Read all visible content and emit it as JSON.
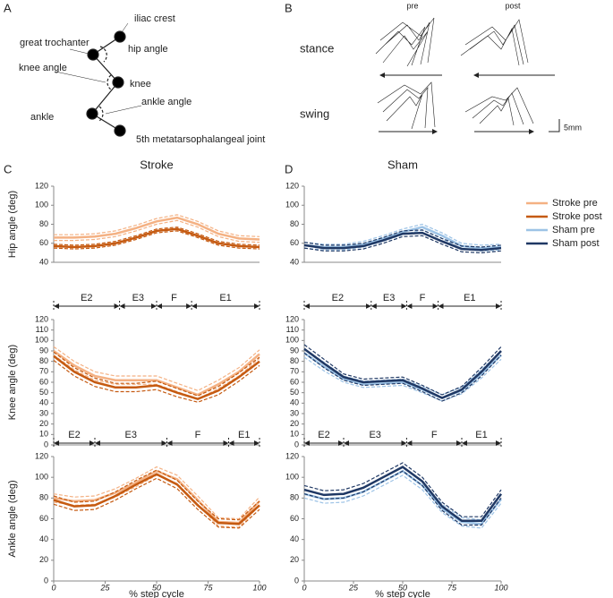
{
  "figure": {
    "panel_a": {
      "letter": "A",
      "labels": [
        "iliac crest",
        "hip angle",
        "great trochanter",
        "knee angle",
        "knee",
        "ankle angle",
        "ankle",
        "5th metatarsophalangeal joint"
      ]
    },
    "panel_b": {
      "letter": "B",
      "columns": [
        "pre",
        "post"
      ],
      "rows": [
        "stance",
        "swing"
      ],
      "scale": "5mm"
    },
    "panel_c": "C",
    "panel_d": "D"
  },
  "chart_data": [
    {
      "type": "line",
      "title": "Stroke",
      "ylabel": "Hip angle (deg)",
      "ylim": [
        40,
        120
      ],
      "yticks": [
        40,
        60,
        80,
        100,
        120
      ],
      "xlim": [
        0,
        100
      ],
      "x": [
        0,
        10,
        20,
        30,
        40,
        50,
        60,
        70,
        80,
        90,
        100
      ],
      "series": [
        {
          "name": "Stroke pre",
          "color": "#f4b183",
          "values": [
            66,
            66,
            67,
            70,
            76,
            83,
            87,
            80,
            70,
            65,
            64
          ],
          "lower": [
            63,
            63,
            64,
            67,
            73,
            80,
            84,
            77,
            67,
            62,
            61
          ],
          "upper": [
            69,
            69,
            70,
            73,
            79,
            86,
            90,
            83,
            73,
            68,
            67
          ]
        },
        {
          "name": "Stroke post",
          "color": "#c55a11",
          "values": [
            57,
            56,
            57,
            60,
            66,
            73,
            75,
            68,
            60,
            57,
            56
          ],
          "lower": [
            55,
            54,
            55,
            58,
            64,
            71,
            73,
            66,
            58,
            55,
            54
          ],
          "upper": [
            59,
            58,
            59,
            62,
            68,
            75,
            77,
            70,
            62,
            59,
            58
          ]
        }
      ]
    },
    {
      "type": "line",
      "title": "Sham",
      "ylim": [
        40,
        120
      ],
      "yticks": [
        40,
        60,
        80,
        100,
        120
      ],
      "xlim": [
        0,
        100
      ],
      "x": [
        0,
        10,
        20,
        30,
        40,
        50,
        60,
        70,
        80,
        90,
        100
      ],
      "series": [
        {
          "name": "Sham pre",
          "color": "#9dc3e6",
          "values": [
            58,
            56,
            56,
            59,
            65,
            72,
            77,
            68,
            57,
            55,
            56
          ],
          "lower": [
            55,
            53,
            53,
            56,
            62,
            69,
            74,
            65,
            54,
            52,
            53
          ],
          "upper": [
            61,
            59,
            59,
            62,
            68,
            75,
            80,
            71,
            60,
            58,
            59
          ]
        },
        {
          "name": "Sham post",
          "color": "#1f3864",
          "values": [
            58,
            55,
            55,
            57,
            63,
            70,
            71,
            62,
            54,
            53,
            55
          ],
          "lower": [
            55,
            52,
            52,
            54,
            60,
            67,
            68,
            59,
            51,
            50,
            52
          ],
          "upper": [
            61,
            58,
            58,
            60,
            66,
            73,
            74,
            65,
            57,
            56,
            58
          ]
        }
      ]
    },
    {
      "type": "line",
      "ylabel": "Knee angle (deg)",
      "ylim": [
        0,
        120
      ],
      "yticks": [
        0,
        10,
        20,
        30,
        40,
        50,
        60,
        70,
        80,
        90,
        100,
        110,
        120
      ],
      "xlim": [
        0,
        100
      ],
      "x": [
        0,
        10,
        20,
        30,
        40,
        50,
        60,
        70,
        80,
        90,
        100
      ],
      "phases": {
        "labels": [
          "E2",
          "E3",
          "F",
          "E1"
        ],
        "bounds": [
          0,
          32,
          50,
          67,
          100
        ]
      },
      "series": [
        {
          "name": "Stroke pre",
          "color": "#f4b183",
          "values": [
            90,
            76,
            66,
            62,
            62,
            62,
            55,
            48,
            58,
            70,
            87
          ],
          "lower": [
            86,
            72,
            62,
            58,
            58,
            58,
            51,
            44,
            54,
            66,
            83
          ],
          "upper": [
            94,
            80,
            70,
            66,
            66,
            66,
            59,
            52,
            62,
            74,
            91
          ]
        },
        {
          "name": "Stroke post",
          "color": "#c55a11",
          "values": [
            85,
            70,
            60,
            55,
            55,
            57,
            50,
            44,
            52,
            65,
            80
          ],
          "lower": [
            81,
            66,
            56,
            51,
            51,
            53,
            46,
            41,
            48,
            61,
            76
          ],
          "upper": [
            89,
            74,
            64,
            59,
            59,
            61,
            54,
            47,
            56,
            69,
            84
          ]
        }
      ]
    },
    {
      "type": "line",
      "ylim": [
        0,
        120
      ],
      "yticks": [
        0,
        10,
        20,
        30,
        40,
        50,
        60,
        70,
        80,
        90,
        100,
        110,
        120
      ],
      "xlim": [
        0,
        100
      ],
      "x": [
        0,
        10,
        20,
        30,
        40,
        50,
        60,
        70,
        80,
        90,
        100
      ],
      "phases": {
        "labels": [
          "E2",
          "E3",
          "F",
          "E1"
        ],
        "bounds": [
          0,
          34,
          52,
          68,
          100
        ]
      },
      "series": [
        {
          "name": "Sham pre",
          "color": "#9dc3e6",
          "values": [
            88,
            75,
            63,
            58,
            59,
            60,
            53,
            45,
            52,
            68,
            86
          ],
          "lower": [
            84,
            71,
            60,
            55,
            56,
            57,
            50,
            42,
            49,
            64,
            82
          ],
          "upper": [
            92,
            79,
            66,
            61,
            62,
            63,
            56,
            48,
            55,
            72,
            90
          ]
        },
        {
          "name": "Sham post",
          "color": "#1f3864",
          "values": [
            92,
            78,
            65,
            60,
            61,
            62,
            54,
            45,
            53,
            70,
            90
          ],
          "lower": [
            88,
            74,
            62,
            57,
            58,
            59,
            51,
            42,
            50,
            66,
            86
          ],
          "upper": [
            96,
            82,
            68,
            63,
            64,
            65,
            57,
            48,
            56,
            74,
            94
          ]
        }
      ]
    },
    {
      "type": "line",
      "ylabel": "Ankle angle (deg)",
      "xlabel": "% step cycle",
      "ylim": [
        0,
        120
      ],
      "yticks": [
        0,
        20,
        40,
        60,
        80,
        100,
        120
      ],
      "xlim": [
        0,
        100
      ],
      "xticks": [
        0,
        25,
        50,
        75,
        100
      ],
      "x": [
        0,
        10,
        20,
        30,
        40,
        50,
        60,
        70,
        80,
        90,
        100
      ],
      "phases": {
        "labels": [
          "E2",
          "E3",
          "F",
          "E1"
        ],
        "bounds": [
          0,
          20,
          55,
          85,
          100
        ]
      },
      "series": [
        {
          "name": "Stroke pre",
          "color": "#f4b183",
          "values": [
            80,
            77,
            78,
            85,
            95,
            106,
            98,
            78,
            57,
            56,
            77
          ],
          "lower": [
            76,
            73,
            74,
            81,
            91,
            102,
            94,
            74,
            53,
            52,
            73
          ],
          "upper": [
            84,
            81,
            82,
            89,
            99,
            110,
            102,
            82,
            61,
            60,
            81
          ]
        },
        {
          "name": "Stroke post",
          "color": "#c55a11",
          "values": [
            78,
            72,
            73,
            82,
            93,
            103,
            93,
            73,
            56,
            55,
            73
          ],
          "lower": [
            74,
            68,
            69,
            78,
            89,
            99,
            89,
            69,
            52,
            51,
            69
          ],
          "upper": [
            82,
            76,
            77,
            86,
            97,
            107,
            97,
            77,
            60,
            59,
            77
          ]
        }
      ]
    },
    {
      "type": "line",
      "xlabel": "% step cycle",
      "ylim": [
        0,
        120
      ],
      "yticks": [
        0,
        20,
        40,
        60,
        80,
        100,
        120
      ],
      "xlim": [
        0,
        100
      ],
      "xticks": [
        0,
        25,
        50,
        75,
        100
      ],
      "x": [
        0,
        10,
        20,
        30,
        40,
        50,
        60,
        70,
        80,
        90,
        100
      ],
      "phases": {
        "labels": [
          "E2",
          "E3",
          "F",
          "E1"
        ],
        "bounds": [
          0,
          20,
          52,
          80,
          100
        ]
      },
      "series": [
        {
          "name": "Sham pre",
          "color": "#9dc3e6",
          "values": [
            84,
            79,
            80,
            86,
            96,
            106,
            92,
            70,
            57,
            55,
            79
          ],
          "lower": [
            80,
            75,
            76,
            82,
            92,
            102,
            88,
            66,
            53,
            51,
            75
          ],
          "upper": [
            88,
            83,
            84,
            90,
            100,
            110,
            96,
            74,
            61,
            59,
            83
          ]
        },
        {
          "name": "Sham post",
          "color": "#1f3864",
          "values": [
            88,
            83,
            84,
            90,
            100,
            110,
            96,
            72,
            58,
            58,
            84
          ],
          "lower": [
            84,
            79,
            80,
            86,
            96,
            106,
            92,
            68,
            54,
            54,
            80
          ],
          "upper": [
            92,
            87,
            88,
            94,
            104,
            114,
            100,
            76,
            62,
            62,
            88
          ]
        }
      ]
    }
  ]
}
